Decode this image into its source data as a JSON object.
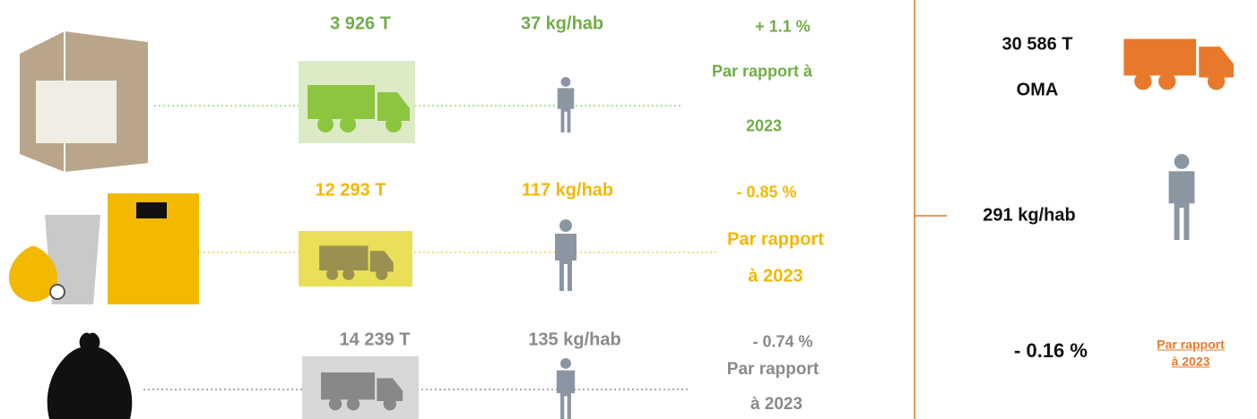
{
  "rows": [
    {
      "tonnage": "3 926 T",
      "per_capita": "37 kg/hab",
      "change": "+ 1.1 %",
      "note": [
        "Par rapport à",
        "2023"
      ]
    },
    {
      "tonnage": "12 293 T",
      "per_capita": "117 kg/hab",
      "change": "- 0.85 %",
      "note": [
        "Par rapport",
        "à 2023"
      ]
    },
    {
      "tonnage": "14 239 T",
      "per_capita": "135 kg/hab",
      "change": "- 0.74 %",
      "note": [
        "Par rapport",
        "à 2023"
      ]
    }
  ],
  "summary": {
    "tonnage": "30 586 T",
    "label": "OMA",
    "per_capita": "291 kg/hab",
    "change": "- 0.16 %",
    "link": [
      "Par rapport",
      "à 2023"
    ]
  }
}
